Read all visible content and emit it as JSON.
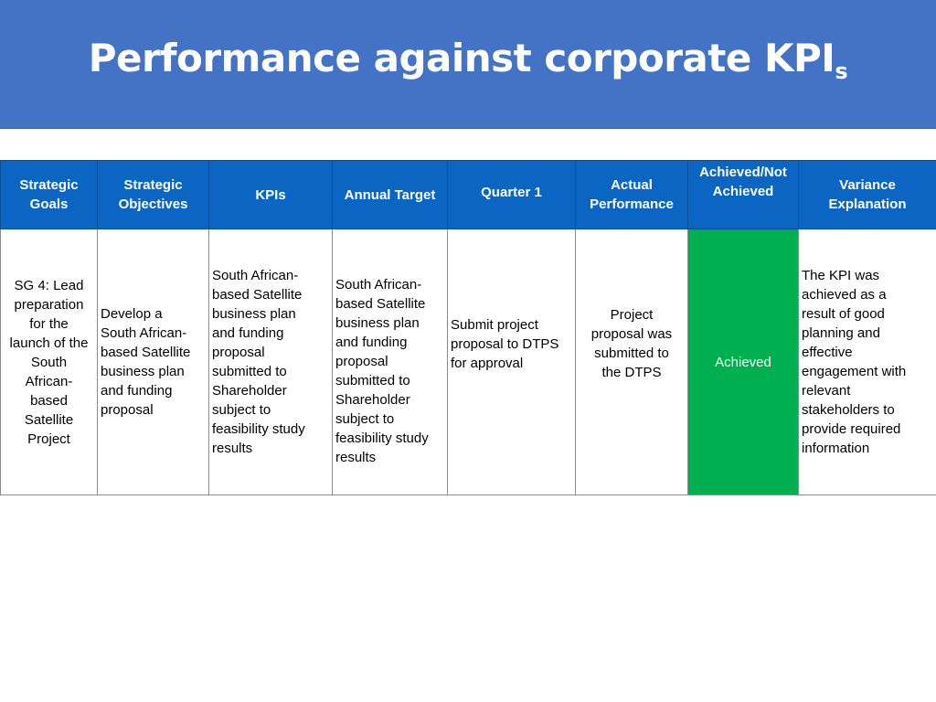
{
  "slide": {
    "title_main": "Performance against corporate KPI",
    "title_suffix": "s"
  },
  "colors": {
    "banner": "#4472c4",
    "header": "#0a66c2",
    "achieved": "#00b050"
  },
  "table": {
    "headers": [
      "Strategic\nGoals",
      "Strategic\nObjectives",
      "KPIs",
      "Annual Target",
      "Quarter 1",
      "Actual\nPerformance",
      "Achieved/Not\nAchieved",
      "Variance\nExplanation"
    ],
    "row": {
      "goal": "SG 4: Lead\npreparation\nfor the\nlaunch of the\nSouth\nAfrican-\nbased\nSatellite\nProject",
      "objective": "Develop a\nSouth African-\nbased Satellite\nbusiness plan\nand funding\nproposal",
      "kpi": "South African-\nbased Satellite\nbusiness plan\nand funding\nproposal\nsubmitted to\nShareholder\nsubject to\nfeasibility study\nresults",
      "annual_target": "South African-\nbased Satellite\nbusiness plan\nand funding\nproposal\nsubmitted to\nShareholder\nsubject to\nfeasibility study\nresults",
      "quarter1": "Submit project\nproposal to DTPS\nfor approval",
      "actual": "Project\nproposal was\nsubmitted to\nthe DTPS",
      "status": "Achieved",
      "variance": "The KPI was\nachieved as a\nresult of good\nplanning and\neffective\nengagement with\nrelevant\nstakeholders to\nprovide required\ninformation"
    }
  }
}
